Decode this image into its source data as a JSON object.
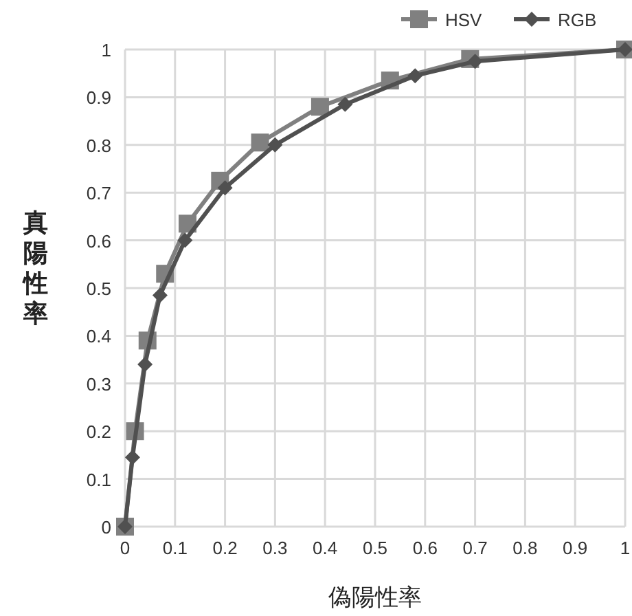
{
  "chart_data": {
    "type": "line",
    "xlabel": "偽陽性率",
    "ylabel": "真陽性率",
    "xlim": [
      0,
      1
    ],
    "ylim": [
      0,
      1
    ],
    "xticks": [
      0,
      0.1,
      0.2,
      0.3,
      0.4,
      0.5,
      0.6,
      0.7,
      0.8,
      0.9,
      1
    ],
    "yticks": [
      0,
      0.1,
      0.2,
      0.3,
      0.4,
      0.5,
      0.6,
      0.7,
      0.8,
      0.9,
      1
    ],
    "grid": true,
    "legend": "top right",
    "series": [
      {
        "name": "HSV",
        "color": "#808080",
        "marker": "square",
        "x": [
          0,
          0.02,
          0.045,
          0.08,
          0.125,
          0.19,
          0.27,
          0.39,
          0.53,
          0.69,
          1
        ],
        "values": [
          0,
          0.2,
          0.39,
          0.53,
          0.635,
          0.725,
          0.805,
          0.88,
          0.935,
          0.98,
          1
        ]
      },
      {
        "name": "RGB",
        "color": "#505050",
        "marker": "diamond",
        "x": [
          0,
          0.015,
          0.04,
          0.07,
          0.12,
          0.2,
          0.3,
          0.44,
          0.58,
          0.7,
          1
        ],
        "values": [
          0,
          0.145,
          0.34,
          0.485,
          0.6,
          0.71,
          0.8,
          0.885,
          0.945,
          0.975,
          1
        ]
      }
    ]
  }
}
